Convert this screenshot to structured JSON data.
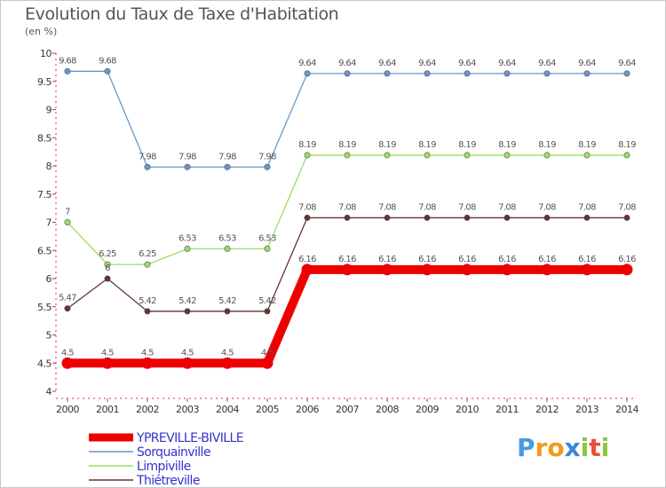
{
  "title": "Evolution du Taux de Taxe d'Habitation",
  "subtitle": "(en %)",
  "logo": {
    "letters": [
      "P",
      "r",
      "o",
      "x",
      "i",
      "t",
      "i"
    ],
    "colors": [
      "#4a9be0",
      "#f29a1a",
      "#f29a1a",
      "#3e86d6",
      "#8cc63e",
      "#e94e3b",
      "#8cc63e"
    ]
  },
  "chart_data": {
    "type": "line",
    "x": [
      2000,
      2001,
      2002,
      2003,
      2004,
      2005,
      2006,
      2007,
      2008,
      2009,
      2010,
      2011,
      2012,
      2013,
      2014
    ],
    "ylim": [
      4,
      10
    ],
    "yticks": [
      4,
      4.5,
      5,
      5.5,
      6,
      6.5,
      7,
      7.5,
      8,
      8.5,
      9,
      9.5,
      10
    ],
    "series": [
      {
        "name": "YPREVILLE-BIVILLE",
        "color": "#ee0000",
        "values": [
          4.5,
          4.5,
          4.5,
          4.5,
          4.5,
          4.5,
          6.16,
          6.16,
          6.16,
          6.16,
          6.16,
          6.16,
          6.16,
          6.16,
          6.16
        ],
        "labels": [
          "4.5",
          "4.5",
          "4.5",
          "4.5",
          "4.5",
          "4.5",
          "6.16",
          "6.16",
          "6.16",
          "6.16",
          "6.16",
          "6.16",
          "6.16",
          "6.16",
          "6.16"
        ]
      },
      {
        "name": "Sorquainville",
        "color": "#6699cc",
        "values": [
          9.68,
          9.68,
          7.98,
          7.98,
          7.98,
          7.98,
          9.64,
          9.64,
          9.64,
          9.64,
          9.64,
          9.64,
          9.64,
          9.64,
          9.64
        ],
        "labels": [
          "9.68",
          "9.68",
          "7.98",
          "7.98",
          "7.98",
          "7.98",
          "9.64",
          "9.64",
          "9.64",
          "9.64",
          "9.64",
          "9.64",
          "9.64",
          "9.64",
          "9.64"
        ]
      },
      {
        "name": "Limpiville",
        "color": "#99dd66",
        "values": [
          7,
          6.25,
          6.25,
          6.53,
          6.53,
          6.53,
          8.19,
          8.19,
          8.19,
          8.19,
          8.19,
          8.19,
          8.19,
          8.19,
          8.19
        ],
        "labels": [
          "7",
          "6.25",
          "6.25",
          "6.53",
          "6.53",
          "6.53",
          "8.19",
          "8.19",
          "8.19",
          "8.19",
          "8.19",
          "8.19",
          "8.19",
          "8.19",
          "8.19"
        ]
      },
      {
        "name": "Thiétreville",
        "color": "#663333",
        "values": [
          5.47,
          6,
          5.42,
          5.42,
          5.42,
          5.42,
          7.08,
          7.08,
          7.08,
          7.08,
          7.08,
          7.08,
          7.08,
          7.08,
          7.08
        ],
        "labels": [
          "5.47",
          "6",
          "5.42",
          "5.42",
          "5.42",
          "5.42",
          "7.08",
          "7.08",
          "7.08",
          "7.08",
          "7.08",
          "7.08",
          "7.08",
          "7.08",
          "7.08"
        ]
      }
    ],
    "legend_placement": "bottom-left",
    "grid": false
  }
}
